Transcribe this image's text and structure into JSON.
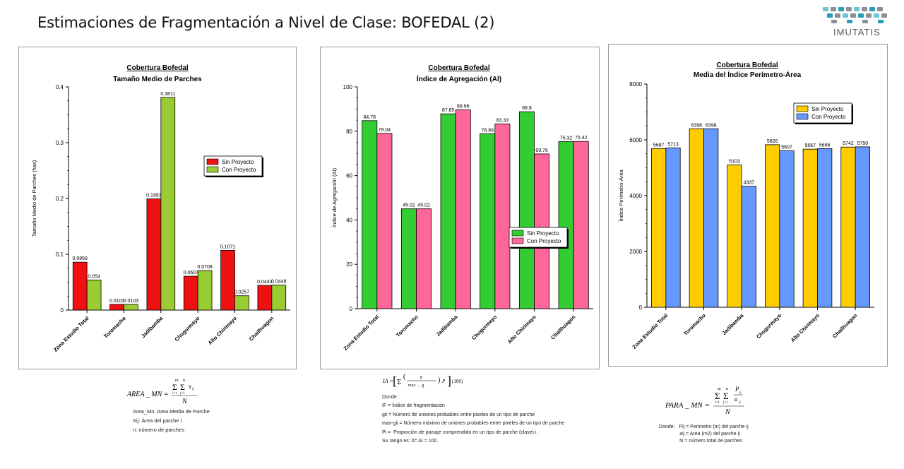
{
  "page": {
    "title": "Estimaciones de Fragmentación a Nivel de Clase: BOFEDAL (2)"
  },
  "logo": {
    "text": "IMUTATIS"
  },
  "colors": {
    "sin_c1": "#ee1111",
    "con_c1": "#99cc33",
    "sin_c2": "#33cc33",
    "con_c2": "#ff6699",
    "sin_c3": "#ffcc00",
    "con_c3": "#6699ff"
  },
  "chart_data": [
    {
      "type": "bar",
      "title": "Cobertura Bofedal",
      "subtitle": "Tamaño Medio de Parches",
      "ylabel": "Tamaño Medio de Parches (has)",
      "xlabel": "",
      "ylim": [
        0,
        0.4
      ],
      "yticks": [
        0,
        0.1,
        0.2,
        0.3,
        0.4
      ],
      "ytick_labels": [
        "0",
        "0.1",
        "0.2",
        "0.3",
        "0.4"
      ],
      "categories": [
        "Zona Estudio Total",
        "Toromacho",
        "Jadibamba",
        "Chugurmayo",
        "Alto Chirimayo",
        "Chailhuagon"
      ],
      "series": [
        {
          "name": "Sin Proyecto",
          "values": [
            0.0859,
            0.0103,
            0.1993,
            0.0607,
            0.1071,
            0.0443
          ],
          "labels": [
            "0.0859",
            "0.0103",
            "0.1993",
            "0.0607",
            "0.1071",
            "0.0443"
          ]
        },
        {
          "name": "Con Proyecto",
          "values": [
            0.054,
            0.0103,
            0.3811,
            0.0708,
            0.0257,
            0.0448
          ],
          "labels": [
            "0.054",
            "0.0103",
            "0.3811",
            "0.0708",
            "0.0257",
            "0.0448"
          ]
        }
      ],
      "legend": "top-right",
      "grid": false
    },
    {
      "type": "bar",
      "title": "Cobertura Bofedal",
      "subtitle": "Índice de Agregación (AI)",
      "ylabel": "Índice de Agregación (AI)",
      "xlabel": "",
      "ylim": [
        0,
        100
      ],
      "yticks": [
        0,
        20,
        40,
        60,
        80,
        100
      ],
      "ytick_labels": [
        "0",
        "20",
        "40",
        "60",
        "80",
        "100"
      ],
      "categories": [
        "Zona Estudio Total",
        "Toromacho",
        "Jadibamba",
        "Chugurmayo",
        "Alto Chirimayo",
        "Chailhuagon"
      ],
      "series": [
        {
          "name": "Sin Proyecto",
          "values": [
            84.78,
            45.02,
            87.85,
            78.89,
            88.8,
            75.32
          ],
          "labels": [
            "84.78",
            "45.02",
            "87.85",
            "78.89",
            "88.8",
            "75.32"
          ]
        },
        {
          "name": "Con Proyecto",
          "values": [
            79.04,
            45.02,
            89.66,
            83.33,
            69.76,
            75.42
          ],
          "labels": [
            "79.04",
            "45.02",
            "89.66",
            "83.33",
            "69.76",
            "75.42"
          ]
        }
      ],
      "legend": "center-right",
      "grid": false
    },
    {
      "type": "bar",
      "title": "Cobertura Bofedal",
      "subtitle": "Media del Índice Perímetro-Área",
      "ylabel": "Índice Perímetro-Área",
      "xlabel": "",
      "ylim": [
        0,
        8000
      ],
      "yticks": [
        0,
        2000,
        4000,
        6000,
        8000
      ],
      "ytick_labels": [
        "0",
        "2000",
        "4000",
        "6000",
        "8000"
      ],
      "categories": [
        "Zona Estudio Total",
        "Toromacho",
        "Jadibamba",
        "Chugurmayo",
        "Alto Chirimayo",
        "Chailhuagon"
      ],
      "series": [
        {
          "name": "Sin Proyecto",
          "values": [
            5687,
            6398,
            5103,
            5826,
            5667,
            5742
          ],
          "labels": [
            "5687",
            "6398",
            "5103",
            "5826",
            "5667",
            "5742"
          ]
        },
        {
          "name": "Con Proyecto",
          "values": [
            5713,
            6398,
            4337,
            5607,
            5686,
            5750
          ],
          "labels": [
            "5713",
            "6398",
            "4337",
            "5607",
            "5686",
            "5750"
          ]
        }
      ],
      "legend": "top-right",
      "grid": false
    }
  ],
  "formulas": {
    "f1": {
      "lhs": "AREA _ MN =",
      "notes": [
        "Area_Mn: Area Media de Parche",
        "Xij: Área del parche i",
        "n: número de parches"
      ]
    },
    "f2": {
      "lhs": "IA =",
      "notes": [
        "Donde :",
        "IF = Índice de fragmentación",
        "gii = Número de uniones probables entre pixeles de un tipo de parche",
        "max-gii = Número máximo de uniones probables entre pixeles de un tipo de parche",
        "Pi =  Proporción de paisaje comprendido en un tipo de parche (clase) i.",
        "",
        "Su rango es: 0= AI = 100."
      ]
    },
    "f3": {
      "lhs": "PARA _ MN =",
      "notes": [
        "Donde:   Pij = Perimetro (m) del parche ij",
        "               aij = Area (m2) del parche ij",
        "               N = número total de parches"
      ]
    }
  }
}
